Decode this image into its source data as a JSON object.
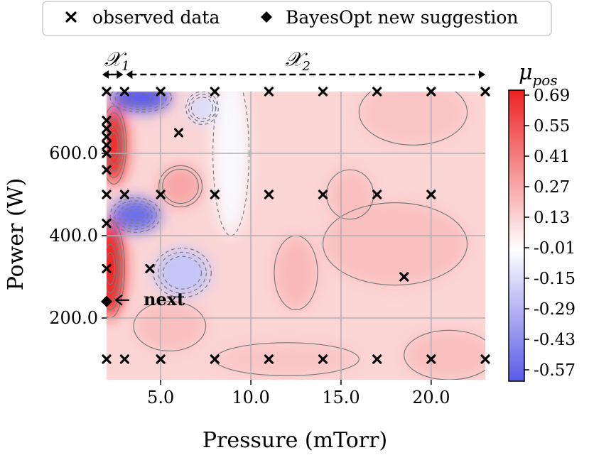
{
  "chart_data": {
    "type": "contour-heatmap",
    "title": "",
    "xlabel": "Pressure (mTorr)",
    "ylabel": "Power (W)",
    "xlim": [
      2.0,
      23.0
    ],
    "ylim": [
      50,
      750
    ],
    "xticks": [
      5.0,
      10.0,
      15.0,
      20.0
    ],
    "yticks": [
      200.0,
      400.0,
      600.0
    ],
    "xtick_labels": [
      "5.0",
      "10.0",
      "15.0",
      "20.0"
    ],
    "ytick_labels": [
      "200.0",
      "400.0",
      "600.0"
    ],
    "grid": true,
    "legend": {
      "placement": "top-center",
      "entries": [
        "observed data",
        "BayesOpt new suggestion"
      ]
    },
    "colorbar": {
      "label": "μ",
      "label_sub": "pos",
      "min": -0.57,
      "max": 0.69,
      "tick_values": [
        0.69,
        0.55,
        0.41,
        0.27,
        0.13,
        -0.01,
        -0.15,
        -0.29,
        -0.43,
        -0.57
      ],
      "tick_labels": [
        "0.69",
        "0.55",
        "0.41",
        "0.27",
        "0.13",
        "-0.01",
        "-0.15",
        "-0.29",
        "-0.43",
        "-0.57"
      ],
      "colors": {
        "low": "#5a5ae8",
        "mid": "#ffffff",
        "high": "#ee2222"
      }
    },
    "regions": {
      "x1": {
        "symbol": "𝒳",
        "sub": "1",
        "range": [
          2.0,
          3.0
        ]
      },
      "x2": {
        "symbol": "𝒳",
        "sub": "2",
        "range": [
          3.0,
          23.0
        ]
      }
    },
    "observed": [
      [
        2,
        750
      ],
      [
        3,
        750
      ],
      [
        5,
        750
      ],
      [
        8,
        750
      ],
      [
        11,
        750
      ],
      [
        14,
        750
      ],
      [
        17,
        750
      ],
      [
        20,
        750
      ],
      [
        23,
        750
      ],
      [
        2,
        680
      ],
      [
        2,
        660
      ],
      [
        2,
        640
      ],
      [
        2,
        620
      ],
      [
        2,
        600
      ],
      [
        2,
        560
      ],
      [
        6,
        650
      ],
      [
        2,
        500
      ],
      [
        3,
        500
      ],
      [
        5,
        500
      ],
      [
        8,
        500
      ],
      [
        11,
        500
      ],
      [
        14,
        500
      ],
      [
        17,
        500
      ],
      [
        20,
        500
      ],
      [
        2,
        430
      ],
      [
        2,
        320
      ],
      [
        4.4,
        320
      ],
      [
        18.5,
        300
      ],
      [
        2,
        100
      ],
      [
        3,
        100
      ],
      [
        5,
        100
      ],
      [
        8,
        100
      ],
      [
        11,
        100
      ],
      [
        14,
        100
      ],
      [
        17,
        100
      ],
      [
        20,
        100
      ],
      [
        23,
        100
      ]
    ],
    "suggestion": {
      "x": 2.0,
      "y": 240
    },
    "suggestion_label": "next",
    "field_features": [
      {
        "kind": "blob",
        "x": 2.4,
        "y": 620,
        "rx": 0.7,
        "ry": 95,
        "value": 0.69
      },
      {
        "kind": "blob",
        "x": 2.2,
        "y": 320,
        "rx": 0.8,
        "ry": 120,
        "value": 0.69
      },
      {
        "kind": "blob",
        "x": 3.9,
        "y": 735,
        "rx": 1.7,
        "ry": 35,
        "value": -0.57
      },
      {
        "kind": "blob",
        "x": 3.6,
        "y": 450,
        "rx": 1.4,
        "ry": 42,
        "value": -0.5
      },
      {
        "kind": "blob",
        "x": 6.2,
        "y": 310,
        "rx": 1.6,
        "ry": 60,
        "value": -0.2
      },
      {
        "kind": "blob",
        "x": 7.3,
        "y": 710,
        "rx": 0.9,
        "ry": 40,
        "value": -0.12
      },
      {
        "kind": "blob",
        "x": 8.9,
        "y": 600,
        "rx": 1.0,
        "ry": 200,
        "value": -0.02
      },
      {
        "kind": "blob",
        "x": 6.1,
        "y": 520,
        "rx": 1.2,
        "ry": 50,
        "value": 0.28
      },
      {
        "kind": "blob",
        "x": 12.5,
        "y": 310,
        "rx": 1.2,
        "ry": 90,
        "value": 0.22
      },
      {
        "kind": "blob",
        "x": 15.5,
        "y": 500,
        "rx": 1.3,
        "ry": 60,
        "value": 0.2
      },
      {
        "kind": "blob",
        "x": 18.0,
        "y": 380,
        "rx": 4.0,
        "ry": 100,
        "value": 0.2
      },
      {
        "kind": "blob",
        "x": 21.0,
        "y": 110,
        "rx": 2.5,
        "ry": 60,
        "value": 0.2
      },
      {
        "kind": "blob",
        "x": 12.0,
        "y": 100,
        "rx": 4.0,
        "ry": 40,
        "value": 0.18
      },
      {
        "kind": "blob",
        "x": 19.0,
        "y": 700,
        "rx": 3.0,
        "ry": 80,
        "value": 0.18
      },
      {
        "kind": "blob",
        "x": 5.5,
        "y": 180,
        "rx": 2.0,
        "ry": 60,
        "value": 0.2
      }
    ],
    "base_value": 0.13
  }
}
